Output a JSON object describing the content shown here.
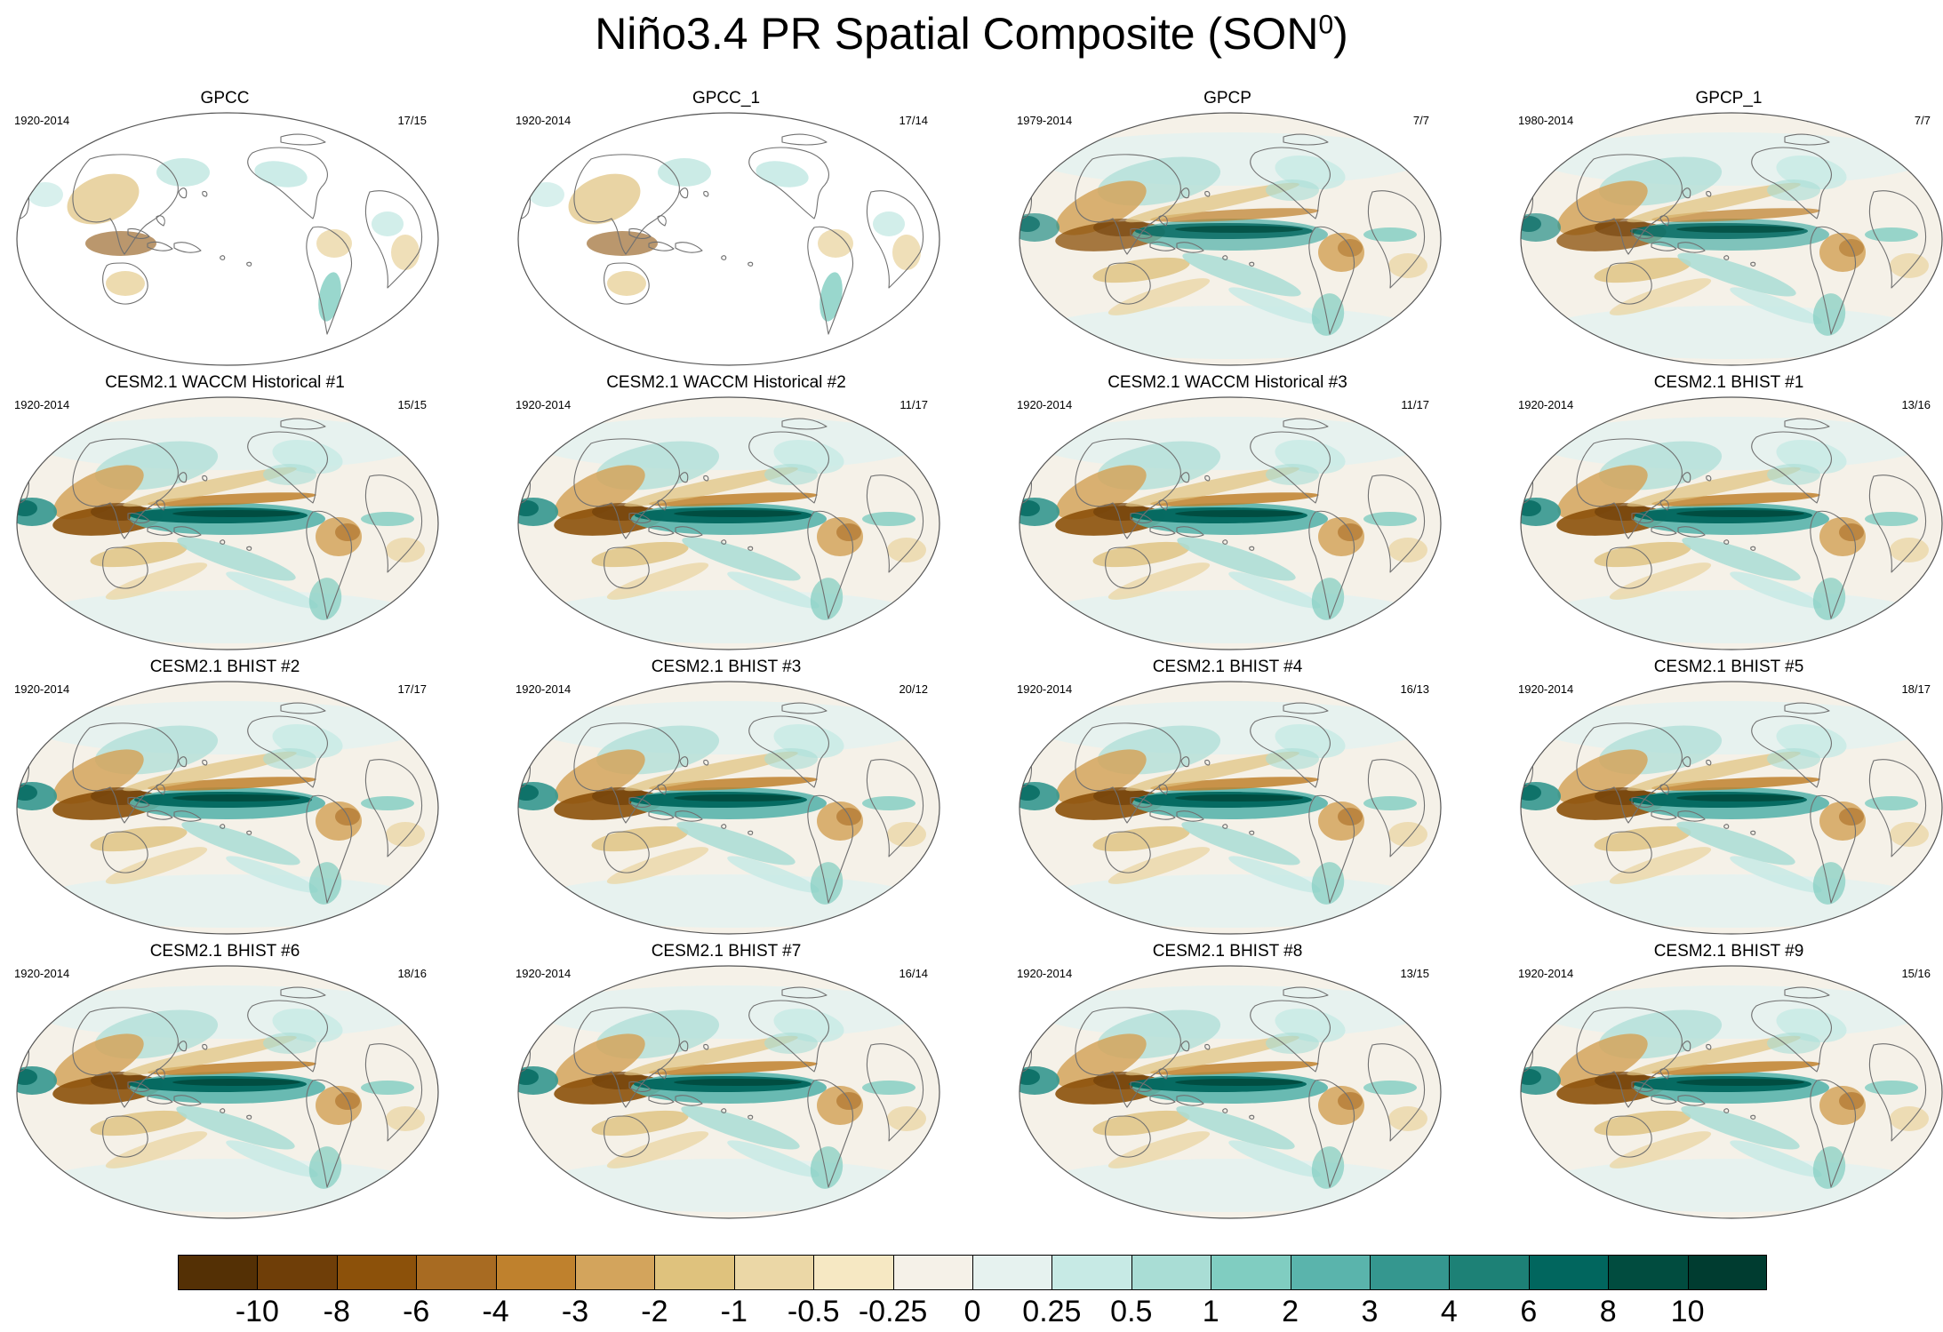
{
  "figure": {
    "title_main": "Niño3.4 PR Spatial Composite (SON",
    "title_sup": "0",
    "title_end": ")"
  },
  "panels": [
    {
      "title": "GPCC",
      "years": "1920-2014",
      "ratio": "17/15",
      "type": "obs_land",
      "amp": 0.7
    },
    {
      "title": "GPCC_1",
      "years": "1920-2014",
      "ratio": "17/14",
      "type": "obs_land",
      "amp": 0.7
    },
    {
      "title": "GPCP",
      "years": "1979-2014",
      "ratio": "7/7",
      "type": "obs",
      "amp": 0.85
    },
    {
      "title": "GPCP_1",
      "years": "1980-2014",
      "ratio": "7/7",
      "type": "obs",
      "amp": 0.85
    },
    {
      "title": "CESM2.1 WACCM Historical #1",
      "years": "1920-2014",
      "ratio": "15/15",
      "type": "model",
      "amp": 1.0
    },
    {
      "title": "CESM2.1 WACCM Historical #2",
      "years": "1920-2014",
      "ratio": "11/17",
      "type": "model",
      "amp": 1.0
    },
    {
      "title": "CESM2.1 WACCM Historical #3",
      "years": "1920-2014",
      "ratio": "11/17",
      "type": "model",
      "amp": 1.0
    },
    {
      "title": "CESM2.1 BHIST #1",
      "years": "1920-2014",
      "ratio": "13/16",
      "type": "model",
      "amp": 1.0
    },
    {
      "title": "CESM2.1 BHIST #2",
      "years": "1920-2014",
      "ratio": "17/17",
      "type": "model",
      "amp": 1.0
    },
    {
      "title": "CESM2.1 BHIST #3",
      "years": "1920-2014",
      "ratio": "20/12",
      "type": "model",
      "amp": 1.0
    },
    {
      "title": "CESM2.1 BHIST #4",
      "years": "1920-2014",
      "ratio": "16/13",
      "type": "model",
      "amp": 1.0
    },
    {
      "title": "CESM2.1 BHIST #5",
      "years": "1920-2014",
      "ratio": "18/17",
      "type": "model",
      "amp": 1.0
    },
    {
      "title": "CESM2.1 BHIST #6",
      "years": "1920-2014",
      "ratio": "18/16",
      "type": "model",
      "amp": 1.0
    },
    {
      "title": "CESM2.1 BHIST #7",
      "years": "1920-2014",
      "ratio": "16/14",
      "type": "model",
      "amp": 1.0
    },
    {
      "title": "CESM2.1 BHIST #8",
      "years": "1920-2014",
      "ratio": "13/15",
      "type": "model",
      "amp": 1.0
    },
    {
      "title": "CESM2.1 BHIST #9",
      "years": "1920-2014",
      "ratio": "15/16",
      "type": "model",
      "amp": 1.0
    }
  ],
  "colorbar": {
    "labels": [
      "-10",
      "-8",
      "-6",
      "-4",
      "-3",
      "-2",
      "-1",
      "-0.5",
      "-0.25",
      "0",
      "0.25",
      "0.5",
      "1",
      "2",
      "3",
      "4",
      "6",
      "8",
      "10"
    ],
    "colors": [
      "#543005",
      "#6f3e08",
      "#8c510a",
      "#a86b22",
      "#bf812d",
      "#d3a45c",
      "#dfc27d",
      "#ebd7a6",
      "#f6e8c3",
      "#f5f1e8",
      "#e6f2ef",
      "#c7eae5",
      "#a9ddd5",
      "#80cdc1",
      "#5ab4ac",
      "#35978f",
      "#1d8176",
      "#01665e",
      "#014c3f",
      "#003c30"
    ]
  },
  "colors": {
    "land_outline": "#707070",
    "map_edge": "#555555",
    "neutral": "#f5f1e8"
  }
}
